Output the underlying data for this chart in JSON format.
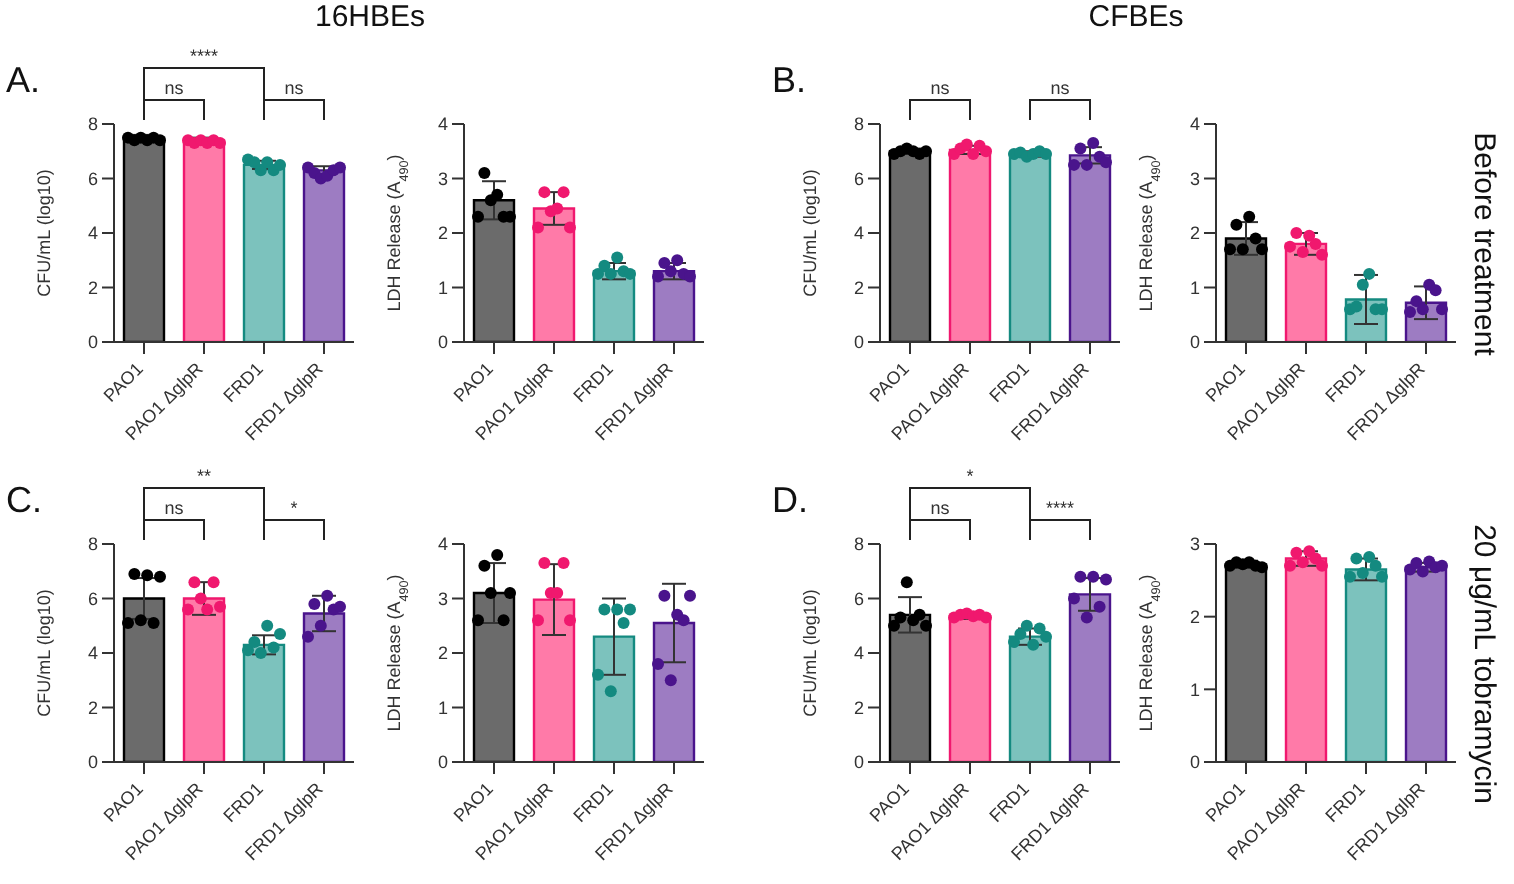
{
  "chart_data": [
    {
      "type": "bar",
      "title": "A.",
      "subtitle": "16HBEs",
      "ylabel": "CFU/mL (log10)",
      "categories": [
        "PAO1",
        "PAO1 ΔglpR",
        "FRD1",
        "FRD1 ΔglpR"
      ],
      "ylim": [
        0,
        8
      ],
      "yticks": [
        0,
        2,
        4,
        6,
        8
      ],
      "marker": "circle",
      "annotations": [
        "****",
        "ns",
        "ns"
      ],
      "series": [
        {
          "type": "bar",
          "colors": [
            "#6b6b6b",
            "#ff7aa8",
            "#7cc2bd",
            "#9d7cc2"
          ],
          "values": [
            7.5,
            7.4,
            6.5,
            6.3
          ],
          "errors": [
            0.1,
            0.1,
            0.15,
            0.15
          ]
        },
        {
          "type": "scatter",
          "x": [
            "PAO1",
            "PAO1",
            "PAO1",
            "PAO1",
            "PAO1",
            "PAO1",
            "PAO1 ΔglpR",
            "PAO1 ΔglpR",
            "PAO1 ΔglpR",
            "PAO1 ΔglpR",
            "PAO1 ΔglpR",
            "PAO1 ΔglpR",
            "FRD1",
            "FRD1",
            "FRD1",
            "FRD1",
            "FRD1",
            "FRD1",
            "FRD1 ΔglpR",
            "FRD1 ΔglpR",
            "FRD1 ΔglpR",
            "FRD1 ΔglpR",
            "FRD1 ΔglpR",
            "FRD1 ΔglpR"
          ],
          "values": [
            7.5,
            7.4,
            7.5,
            7.4,
            7.5,
            7.4,
            7.4,
            7.3,
            7.4,
            7.3,
            7.4,
            7.3,
            6.7,
            6.6,
            6.3,
            6.6,
            6.3,
            6.5,
            6.4,
            6.2,
            6.0,
            6.1,
            6.3,
            6.4
          ],
          "colors": [
            "#000000",
            "#000000",
            "#000000",
            "#000000",
            "#000000",
            "#000000",
            "#f0186e",
            "#f0186e",
            "#f0186e",
            "#f0186e",
            "#f0186e",
            "#f0186e",
            "#148a80",
            "#148a80",
            "#148a80",
            "#148a80",
            "#148a80",
            "#148a80",
            "#4a148c",
            "#4a148c",
            "#4a148c",
            "#4a148c",
            "#4a148c",
            "#4a148c"
          ]
        }
      ]
    },
    {
      "type": "bar",
      "ylabel": "LDH Release (A$_{490}$)",
      "categories": [
        "PAO1",
        "PAO1 ΔglpR",
        "FRD1",
        "FRD1 ΔglpR"
      ],
      "ylim": [
        0,
        4
      ],
      "yticks": [
        0,
        1,
        2,
        3,
        4
      ],
      "marker": "circle",
      "series": [
        {
          "type": "bar",
          "colors": [
            "#6b6b6b",
            "#ff7aa8",
            "#7cc2bd",
            "#9d7cc2"
          ],
          "values": [
            2.6,
            2.45,
            1.3,
            1.3
          ],
          "errors": [
            0.35,
            0.3,
            0.15,
            0.15
          ]
        },
        {
          "type": "scatter",
          "x": [
            "PAO1",
            "PAO1",
            "PAO1",
            "PAO1",
            "PAO1",
            "PAO1",
            "PAO1 ΔglpR",
            "PAO1 ΔglpR",
            "PAO1 ΔglpR",
            "PAO1 ΔglpR",
            "PAO1 ΔglpR",
            "PAO1 ΔglpR",
            "FRD1",
            "FRD1",
            "FRD1",
            "FRD1",
            "FRD1",
            "FRD1",
            "FRD1 ΔglpR",
            "FRD1 ΔglpR",
            "FRD1 ΔglpR",
            "FRD1 ΔglpR",
            "FRD1 ΔglpR",
            "FRD1 ΔglpR"
          ],
          "values": [
            2.3,
            3.1,
            2.6,
            2.7,
            2.3,
            2.3,
            2.1,
            2.75,
            2.4,
            2.45,
            2.75,
            2.1,
            1.25,
            1.4,
            1.25,
            1.55,
            1.3,
            1.25,
            1.2,
            1.45,
            1.3,
            1.5,
            1.25,
            1.2
          ],
          "colors": [
            "#000000",
            "#000000",
            "#000000",
            "#000000",
            "#000000",
            "#000000",
            "#f0186e",
            "#f0186e",
            "#f0186e",
            "#f0186e",
            "#f0186e",
            "#f0186e",
            "#148a80",
            "#148a80",
            "#148a80",
            "#148a80",
            "#148a80",
            "#148a80",
            "#4a148c",
            "#4a148c",
            "#4a148c",
            "#4a148c",
            "#4a148c",
            "#4a148c"
          ]
        }
      ]
    },
    {
      "type": "bar",
      "title": "B.",
      "subtitle": "CFBEs",
      "ylabel": "CFU/mL (log10)",
      "categories": [
        "PAO1",
        "PAO1 ΔglpR",
        "FRD1",
        "FRD1 ΔglpR"
      ],
      "ylim": [
        0,
        8
      ],
      "yticks": [
        0,
        2,
        4,
        6,
        8
      ],
      "marker": "circle",
      "annotations": [
        "ns",
        "ns"
      ],
      "series": [
        {
          "type": "bar",
          "colors": [
            "#6b6b6b",
            "#ff7aa8",
            "#7cc2bd",
            "#9d7cc2"
          ],
          "values": [
            7.0,
            7.05,
            6.9,
            6.85
          ],
          "errors": [
            0.1,
            0.15,
            0.1,
            0.3
          ]
        },
        {
          "type": "scatter",
          "x": [
            "PAO1",
            "PAO1",
            "PAO1",
            "PAO1",
            "PAO1",
            "PAO1",
            "PAO1 ΔglpR",
            "PAO1 ΔglpR",
            "PAO1 ΔglpR",
            "PAO1 ΔglpR",
            "PAO1 ΔglpR",
            "PAO1 ΔglpR",
            "FRD1",
            "FRD1",
            "FRD1",
            "FRD1",
            "FRD1",
            "FRD1",
            "FRD1 ΔglpR",
            "FRD1 ΔglpR",
            "FRD1 ΔglpR",
            "FRD1 ΔglpR",
            "FRD1 ΔglpR",
            "FRD1 ΔglpR"
          ],
          "values": [
            6.9,
            7.0,
            7.1,
            7.0,
            6.9,
            7.0,
            6.9,
            7.1,
            7.25,
            6.9,
            7.2,
            7.0,
            6.9,
            6.95,
            6.8,
            6.9,
            7.0,
            6.9,
            6.5,
            7.1,
            6.5,
            7.3,
            6.8,
            6.6
          ],
          "colors": [
            "#000000",
            "#000000",
            "#000000",
            "#000000",
            "#000000",
            "#000000",
            "#f0186e",
            "#f0186e",
            "#f0186e",
            "#f0186e",
            "#f0186e",
            "#f0186e",
            "#148a80",
            "#148a80",
            "#148a80",
            "#148a80",
            "#148a80",
            "#148a80",
            "#4a148c",
            "#4a148c",
            "#4a148c",
            "#4a148c",
            "#4a148c",
            "#4a148c"
          ]
        }
      ]
    },
    {
      "type": "bar",
      "ylabel": "LDH Release (A$_{490}$)",
      "categories": [
        "PAO1",
        "PAO1 ΔglpR",
        "FRD1",
        "FRD1 ΔglpR"
      ],
      "ylim": [
        0,
        4
      ],
      "yticks": [
        0,
        1,
        2,
        3,
        4
      ],
      "marker": "circle",
      "annotations": [
        "Before treatment"
      ],
      "series": [
        {
          "type": "bar",
          "colors": [
            "#6b6b6b",
            "#ff7aa8",
            "#7cc2bd",
            "#9d7cc2"
          ],
          "values": [
            1.9,
            1.8,
            0.78,
            0.72
          ],
          "errors": [
            0.3,
            0.2,
            0.45,
            0.3
          ]
        },
        {
          "type": "scatter",
          "x": [
            "PAO1",
            "PAO1",
            "PAO1",
            "PAO1",
            "PAO1",
            "PAO1",
            "PAO1 ΔglpR",
            "PAO1 ΔglpR",
            "PAO1 ΔglpR",
            "PAO1 ΔglpR",
            "PAO1 ΔglpR",
            "PAO1 ΔglpR",
            "FRD1",
            "FRD1",
            "FRD1",
            "FRD1",
            "FRD1",
            "FRD1",
            "FRD1 ΔglpR",
            "FRD1 ΔglpR",
            "FRD1 ΔglpR",
            "FRD1 ΔglpR",
            "FRD1 ΔglpR",
            "FRD1 ΔglpR"
          ],
          "values": [
            1.7,
            2.15,
            1.7,
            2.3,
            1.9,
            1.7,
            1.75,
            2.0,
            1.65,
            1.95,
            1.8,
            1.6,
            0.6,
            0.65,
            1.05,
            1.25,
            0.6,
            0.6,
            0.55,
            0.75,
            0.6,
            1.05,
            0.95,
            0.6
          ],
          "colors": [
            "#000000",
            "#000000",
            "#000000",
            "#000000",
            "#000000",
            "#000000",
            "#f0186e",
            "#f0186e",
            "#f0186e",
            "#f0186e",
            "#f0186e",
            "#f0186e",
            "#148a80",
            "#148a80",
            "#148a80",
            "#148a80",
            "#148a80",
            "#148a80",
            "#4a148c",
            "#4a148c",
            "#4a148c",
            "#4a148c",
            "#4a148c",
            "#4a148c"
          ]
        }
      ]
    },
    {
      "type": "bar",
      "title": "C.",
      "ylabel": "CFU/mL (log10)",
      "categories": [
        "PAO1",
        "PAO1 ΔglpR",
        "FRD1",
        "FRD1 ΔglpR"
      ],
      "ylim": [
        0,
        8
      ],
      "yticks": [
        0,
        2,
        4,
        6,
        8
      ],
      "marker": "circle",
      "annotations": [
        "**",
        "ns",
        "*"
      ],
      "series": [
        {
          "type": "bar",
          "colors": [
            "#6b6b6b",
            "#ff7aa8",
            "#7cc2bd",
            "#9d7cc2"
          ],
          "values": [
            6.0,
            6.0,
            4.3,
            5.45
          ],
          "errors": [
            0.75,
            0.6,
            0.35,
            0.65
          ]
        },
        {
          "type": "scatter",
          "x": [
            "PAO1",
            "PAO1",
            "PAO1",
            "PAO1",
            "PAO1",
            "PAO1",
            "PAO1 ΔglpR",
            "PAO1 ΔglpR",
            "PAO1 ΔglpR",
            "PAO1 ΔglpR",
            "PAO1 ΔglpR",
            "PAO1 ΔglpR",
            "FRD1",
            "FRD1",
            "FRD1",
            "FRD1",
            "FRD1",
            "FRD1",
            "FRD1 ΔglpR",
            "FRD1 ΔglpR",
            "FRD1 ΔglpR",
            "FRD1 ΔglpR",
            "FRD1 ΔglpR",
            "FRD1 ΔglpR"
          ],
          "values": [
            5.1,
            6.9,
            5.2,
            6.85,
            5.1,
            6.8,
            5.6,
            6.6,
            6.0,
            5.6,
            6.6,
            5.7,
            4.1,
            4.4,
            4.0,
            5.0,
            4.2,
            4.7,
            4.6,
            5.8,
            5.0,
            6.1,
            5.6,
            5.7
          ],
          "colors": [
            "#000000",
            "#000000",
            "#000000",
            "#000000",
            "#000000",
            "#000000",
            "#f0186e",
            "#f0186e",
            "#f0186e",
            "#f0186e",
            "#f0186e",
            "#f0186e",
            "#148a80",
            "#148a80",
            "#148a80",
            "#148a80",
            "#148a80",
            "#148a80",
            "#4a148c",
            "#4a148c",
            "#4a148c",
            "#4a148c",
            "#4a148c",
            "#4a148c"
          ]
        }
      ]
    },
    {
      "type": "bar",
      "ylabel": "LDH Release (A$_{490}$)",
      "categories": [
        "PAO1",
        "PAO1 ΔglpR",
        "FRD1",
        "FRD1 ΔglpR"
      ],
      "ylim": [
        0,
        4
      ],
      "yticks": [
        0,
        1,
        2,
        3,
        4
      ],
      "marker": "circle",
      "series": [
        {
          "type": "bar",
          "colors": [
            "#6b6b6b",
            "#ff7aa8",
            "#7cc2bd",
            "#9d7cc2"
          ],
          "values": [
            3.1,
            2.98,
            2.3,
            2.55
          ],
          "errors": [
            0.55,
            0.65,
            0.7,
            0.72
          ]
        },
        {
          "type": "scatter",
          "x": [
            "PAO1",
            "PAO1",
            "PAO1",
            "PAO1",
            "PAO1",
            "PAO1",
            "PAO1 ΔglpR",
            "PAO1 ΔglpR",
            "PAO1 ΔglpR",
            "PAO1 ΔglpR",
            "PAO1 ΔglpR",
            "PAO1 ΔglpR",
            "FRD1",
            "FRD1",
            "FRD1",
            "FRD1",
            "FRD1",
            "FRD1",
            "FRD1 ΔglpR",
            "FRD1 ΔglpR",
            "FRD1 ΔglpR",
            "FRD1 ΔglpR",
            "FRD1 ΔglpR",
            "FRD1 ΔglpR"
          ],
          "values": [
            2.6,
            3.6,
            3.1,
            3.8,
            2.6,
            3.1,
            2.6,
            3.65,
            3.1,
            3.1,
            3.65,
            2.6,
            1.6,
            2.8,
            1.3,
            2.8,
            2.55,
            2.8,
            1.8,
            3.05,
            1.5,
            2.7,
            2.6,
            3.05
          ],
          "colors": [
            "#000000",
            "#000000",
            "#000000",
            "#000000",
            "#000000",
            "#000000",
            "#f0186e",
            "#f0186e",
            "#f0186e",
            "#f0186e",
            "#f0186e",
            "#f0186e",
            "#148a80",
            "#148a80",
            "#148a80",
            "#148a80",
            "#148a80",
            "#148a80",
            "#4a148c",
            "#4a148c",
            "#4a148c",
            "#4a148c",
            "#4a148c",
            "#4a148c"
          ]
        }
      ]
    },
    {
      "type": "bar",
      "title": "D.",
      "ylabel": "CFU/mL (log10)",
      "categories": [
        "PAO1",
        "PAO1 ΔglpR",
        "FRD1",
        "FRD1 ΔglpR"
      ],
      "ylim": [
        0,
        8
      ],
      "yticks": [
        0,
        2,
        4,
        6,
        8
      ],
      "marker": "circle",
      "annotations": [
        "*",
        "ns",
        "****"
      ],
      "series": [
        {
          "type": "bar",
          "colors": [
            "#6b6b6b",
            "#ff7aa8",
            "#7cc2bd",
            "#9d7cc2"
          ],
          "values": [
            5.4,
            5.35,
            4.6,
            6.15
          ],
          "errors": [
            0.65,
            0.1,
            0.3,
            0.6
          ]
        },
        {
          "type": "scatter",
          "x": [
            "PAO1",
            "PAO1",
            "PAO1",
            "PAO1",
            "PAO1",
            "PAO1",
            "PAO1 ΔglpR",
            "PAO1 ΔglpR",
            "PAO1 ΔglpR",
            "PAO1 ΔglpR",
            "PAO1 ΔglpR",
            "PAO1 ΔglpR",
            "FRD1",
            "FRD1",
            "FRD1",
            "FRD1",
            "FRD1",
            "FRD1",
            "FRD1 ΔglpR",
            "FRD1 ΔglpR",
            "FRD1 ΔglpR",
            "FRD1 ΔglpR",
            "FRD1 ΔglpR",
            "FRD1 ΔglpR"
          ],
          "values": [
            5.0,
            5.3,
            6.6,
            5.2,
            5.4,
            5.0,
            5.3,
            5.4,
            5.45,
            5.35,
            5.4,
            5.3,
            4.4,
            4.7,
            5.0,
            4.3,
            4.9,
            4.6,
            6.0,
            6.8,
            5.3,
            6.8,
            5.7,
            6.7
          ],
          "colors": [
            "#000000",
            "#000000",
            "#000000",
            "#000000",
            "#000000",
            "#000000",
            "#f0186e",
            "#f0186e",
            "#f0186e",
            "#f0186e",
            "#f0186e",
            "#f0186e",
            "#148a80",
            "#148a80",
            "#148a80",
            "#148a80",
            "#148a80",
            "#148a80",
            "#4a148c",
            "#4a148c",
            "#4a148c",
            "#4a148c",
            "#4a148c",
            "#4a148c"
          ]
        }
      ]
    },
    {
      "type": "bar",
      "ylabel": "LDH Release (A$_{490}$)",
      "categories": [
        "PAO1",
        "PAO1 ΔglpR",
        "FRD1",
        "FRD1 ΔglpR"
      ],
      "ylim": [
        0,
        3
      ],
      "yticks": [
        0,
        1,
        2,
        3
      ],
      "marker": "circle",
      "annotations": [
        "20 μg/mL tobramycin"
      ],
      "series": [
        {
          "type": "bar",
          "colors": [
            "#6b6b6b",
            "#ff7aa8",
            "#7cc2bd",
            "#9d7cc2"
          ],
          "values": [
            2.72,
            2.8,
            2.65,
            2.68
          ],
          "errors": [
            0.05,
            0.1,
            0.15,
            0.06
          ]
        },
        {
          "type": "scatter",
          "x": [
            "PAO1",
            "PAO1",
            "PAO1",
            "PAO1",
            "PAO1",
            "PAO1",
            "PAO1 ΔglpR",
            "PAO1 ΔglpR",
            "PAO1 ΔglpR",
            "PAO1 ΔglpR",
            "PAO1 ΔglpR",
            "PAO1 ΔglpR",
            "FRD1",
            "FRD1",
            "FRD1",
            "FRD1",
            "FRD1",
            "FRD1",
            "FRD1 ΔglpR",
            "FRD1 ΔglpR",
            "FRD1 ΔglpR",
            "FRD1 ΔglpR",
            "FRD1 ΔglpR",
            "FRD1 ΔglpR"
          ],
          "values": [
            2.7,
            2.75,
            2.72,
            2.75,
            2.7,
            2.68,
            2.7,
            2.88,
            2.75,
            2.9,
            2.8,
            2.7,
            2.55,
            2.8,
            2.6,
            2.82,
            2.7,
            2.55,
            2.65,
            2.74,
            2.62,
            2.76,
            2.68,
            2.7
          ],
          "colors": [
            "#000000",
            "#000000",
            "#000000",
            "#000000",
            "#000000",
            "#000000",
            "#f0186e",
            "#f0186e",
            "#f0186e",
            "#f0186e",
            "#f0186e",
            "#f0186e",
            "#148a80",
            "#148a80",
            "#148a80",
            "#148a80",
            "#148a80",
            "#148a80",
            "#4a148c",
            "#4a148c",
            "#4a148c",
            "#4a148c",
            "#4a148c",
            "#4a148c"
          ]
        }
      ]
    }
  ]
}
